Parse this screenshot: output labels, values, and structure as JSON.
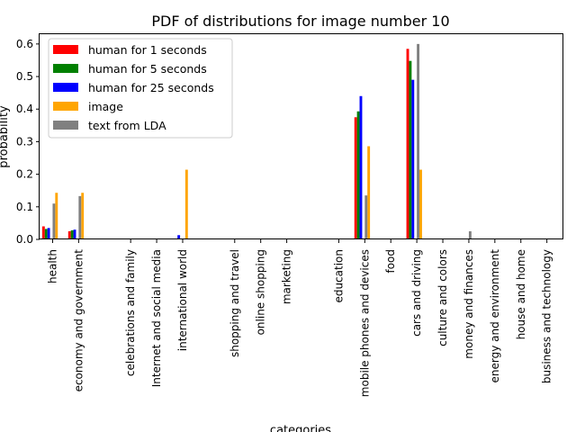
{
  "chart_data": {
    "type": "bar",
    "title": "PDF of distributions for image number 10",
    "xlabel": "categories",
    "ylabel": "probability",
    "ylim": [
      0,
      0.63
    ],
    "yticks": [
      0.0,
      0.1,
      0.2,
      0.3,
      0.4,
      0.5,
      0.6
    ],
    "ytick_labels": [
      "0.0",
      "0.1",
      "0.2",
      "0.3",
      "0.4",
      "0.5",
      "0.6"
    ],
    "legend_position": "top-left",
    "categories": [
      "health",
      "economy and government",
      "celebrations and family",
      "Internet and social media",
      "international world",
      "shopping and travel",
      "online shopping",
      "marketing",
      "education",
      "mobile phones and devices",
      "food",
      "cars and driving",
      "culture and colors",
      "money and finances",
      "energy and environment",
      "house and home",
      "business and technology"
    ],
    "category_positions": [
      0,
      1,
      3,
      4,
      5,
      7,
      8,
      9,
      11,
      12,
      13,
      14,
      15,
      16,
      17,
      18,
      19
    ],
    "xlim": [
      -0.5,
      19.6
    ],
    "series": [
      {
        "name": "human for 1 seconds",
        "color": "#ff0000",
        "offset": -0.35,
        "values": [
          0.04,
          0.025,
          0,
          0,
          0,
          0,
          0,
          0,
          0,
          0.375,
          0,
          0.585,
          0,
          0,
          0,
          0,
          0
        ]
      },
      {
        "name": "human for 5 seconds",
        "color": "#008000",
        "offset": -0.25,
        "values": [
          0.032,
          0.028,
          0,
          0,
          0,
          0,
          0,
          0,
          0,
          0.393,
          0,
          0.548,
          0,
          0,
          0,
          0,
          0
        ]
      },
      {
        "name": "human for 25 seconds",
        "color": "#0000ff",
        "offset": -0.15,
        "values": [
          0.035,
          0.03,
          0,
          0,
          0.013,
          0,
          0,
          0,
          0,
          0.44,
          0,
          0.49,
          0,
          0,
          0,
          0,
          0
        ]
      },
      {
        "name": "image",
        "color": "#ffa500",
        "offset": 0.15,
        "values": [
          0.143,
          0.143,
          0,
          0,
          0.214,
          0,
          0,
          0,
          0,
          0.286,
          0,
          0.214,
          0,
          0,
          0,
          0,
          0
        ]
      },
      {
        "name": "text from LDA",
        "color": "#808080",
        "offset": 0.05,
        "values": [
          0.11,
          0.133,
          0,
          0,
          0,
          0,
          0,
          0,
          0,
          0.135,
          0,
          0.6,
          0,
          0.025,
          0,
          0,
          0
        ]
      }
    ]
  }
}
